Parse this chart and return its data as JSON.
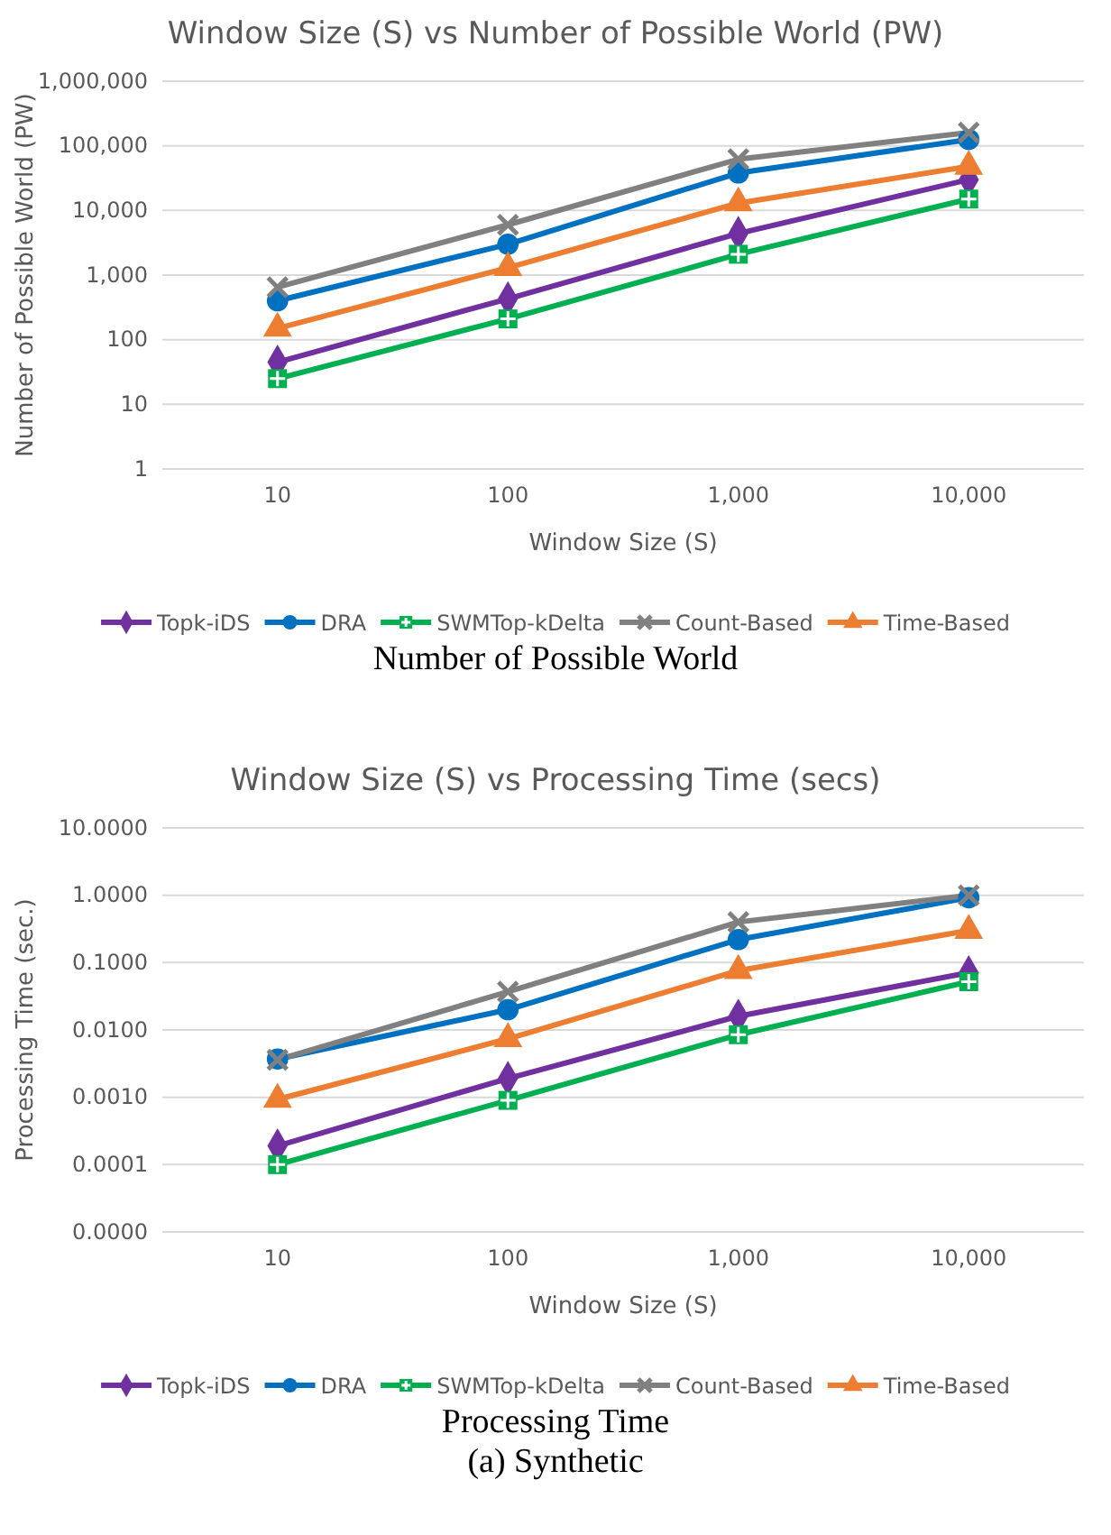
{
  "chart_data": [
    {
      "type": "line",
      "title": "Window Size (S) vs Number of Possible World (PW)",
      "xlabel": "Window Size (S)",
      "ylabel": "Number of Possible World (PW)",
      "categories": [
        "10",
        "100",
        "1,000",
        "10,000"
      ],
      "log": "y",
      "ylim": [
        1,
        1000000
      ],
      "yticks": [
        {
          "value": 1,
          "label": "1"
        },
        {
          "value": 10,
          "label": "10"
        },
        {
          "value": 100,
          "label": "100"
        },
        {
          "value": 1000,
          "label": "1,000"
        },
        {
          "value": 10000,
          "label": "10,000"
        },
        {
          "value": 100000,
          "label": "100,000"
        },
        {
          "value": 1000000,
          "label": "1,000,000"
        }
      ],
      "grid": "y",
      "legend": "bottom",
      "series": [
        {
          "name": "Topk-iDS",
          "color": "#7030a0",
          "marker": "diamond",
          "values": [
            45,
            430,
            4400,
            30000
          ]
        },
        {
          "name": "DRA",
          "color": "#0070c0",
          "marker": "circle",
          "values": [
            400,
            3000,
            38000,
            125000
          ]
        },
        {
          "name": "SWMTop-kDelta",
          "color": "#00b050",
          "marker": "square",
          "values": [
            25,
            210,
            2100,
            15000
          ]
        },
        {
          "name": "Count-Based",
          "color": "#808080",
          "marker": "cross",
          "values": [
            650,
            6000,
            62000,
            160000
          ]
        },
        {
          "name": "Time-Based",
          "color": "#ed7d31",
          "marker": "triangle",
          "values": [
            150,
            1300,
            13000,
            48000
          ]
        }
      ],
      "annotations": [
        "Number of Possible World"
      ]
    },
    {
      "type": "line",
      "title": "Window Size (S) vs Processing Time (secs)",
      "xlabel": "Window Size (S)",
      "ylabel": "Processing Time (sec.)",
      "categories": [
        "10",
        "100",
        "1,000",
        "10,000"
      ],
      "log": "y",
      "ylim": [
        1e-05,
        10
      ],
      "yticks": [
        {
          "value": 1e-05,
          "label": "0.0000"
        },
        {
          "value": 0.0001,
          "label": "0.0001"
        },
        {
          "value": 0.001,
          "label": "0.0010"
        },
        {
          "value": 0.01,
          "label": "0.0100"
        },
        {
          "value": 0.1,
          "label": "0.1000"
        },
        {
          "value": 1,
          "label": "1.0000"
        },
        {
          "value": 10,
          "label": "10.0000"
        }
      ],
      "grid": "y",
      "legend": "bottom",
      "series": [
        {
          "name": "Topk-iDS",
          "color": "#7030a0",
          "marker": "diamond",
          "values": [
            0.00019,
            0.0019,
            0.016,
            0.071
          ]
        },
        {
          "name": "DRA",
          "color": "#0070c0",
          "marker": "circle",
          "values": [
            0.0037,
            0.02,
            0.22,
            0.92
          ]
        },
        {
          "name": "SWMTop-kDelta",
          "color": "#00b050",
          "marker": "square",
          "values": [
            0.0001,
            0.0009,
            0.0085,
            0.052
          ]
        },
        {
          "name": "Count-Based",
          "color": "#808080",
          "marker": "cross",
          "values": [
            0.0036,
            0.037,
            0.4,
            1.0
          ]
        },
        {
          "name": "Time-Based",
          "color": "#ed7d31",
          "marker": "triangle",
          "values": [
            0.00093,
            0.0074,
            0.076,
            0.3
          ]
        }
      ],
      "annotations": [
        "Processing Time",
        "(a) Synthetic"
      ]
    }
  ]
}
